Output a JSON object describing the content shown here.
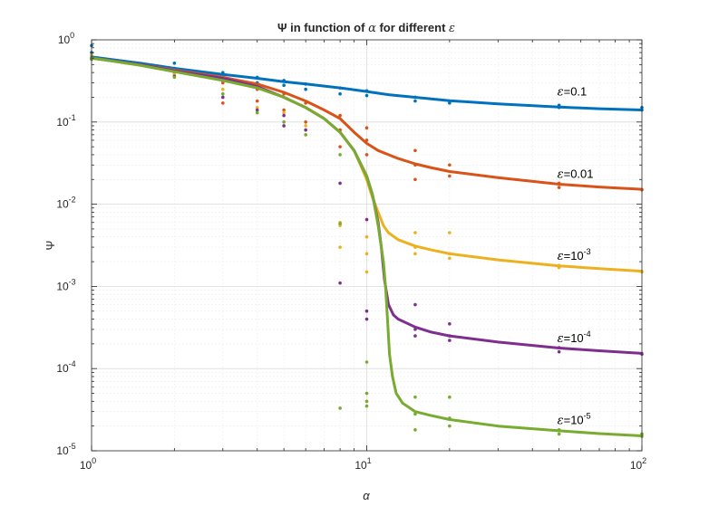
{
  "chart_data": {
    "type": "line",
    "title_prefix": "Ψ in function of ",
    "title_var": "α",
    "title_mid": " for different ",
    "title_eps": "ε",
    "xlabel": "α",
    "ylabel": "Ψ",
    "xscale": "log",
    "yscale": "log",
    "xlim": [
      1,
      100
    ],
    "ylim": [
      1e-05,
      1
    ],
    "grid": "on (major and minor)",
    "x_tick_labels": [
      {
        "value": 1,
        "base": "10",
        "exp": "0"
      },
      {
        "value": 10,
        "base": "10",
        "exp": "1"
      },
      {
        "value": 100,
        "base": "10",
        "exp": "2"
      }
    ],
    "y_tick_labels": [
      {
        "value": 1,
        "base": "10",
        "exp": "0"
      },
      {
        "value": 0.1,
        "base": "10",
        "exp": "-1"
      },
      {
        "value": 0.01,
        "base": "10",
        "exp": "-2"
      },
      {
        "value": 0.001,
        "base": "10",
        "exp": "-3"
      },
      {
        "value": 0.0001,
        "base": "10",
        "exp": "-4"
      },
      {
        "value": 1e-05,
        "base": "10",
        "exp": "-5"
      }
    ],
    "series": [
      {
        "color": "#0072bd",
        "annotation": {
          "eps": "ε",
          "text": "=0.1",
          "sup": "",
          "at": [
            50,
            0.2
          ]
        },
        "curve": {
          "x": [
            1,
            1.5,
            2,
            3,
            4,
            5,
            6,
            8,
            10,
            12,
            15,
            20,
            30,
            50,
            70,
            100
          ],
          "y": [
            0.62,
            0.52,
            0.45,
            0.38,
            0.34,
            0.31,
            0.29,
            0.26,
            0.235,
            0.215,
            0.2,
            0.182,
            0.166,
            0.152,
            0.145,
            0.14
          ]
        },
        "samples": {
          "x": [
            1,
            1,
            1,
            2,
            2,
            2,
            3,
            3,
            4,
            4,
            5,
            5,
            6,
            6,
            8,
            8,
            10,
            10,
            15,
            15,
            20,
            20,
            50,
            50,
            100,
            100
          ],
          "y": [
            0.85,
            0.7,
            0.58,
            0.52,
            0.45,
            0.4,
            0.4,
            0.35,
            0.35,
            0.3,
            0.32,
            0.28,
            0.29,
            0.25,
            0.26,
            0.22,
            0.24,
            0.21,
            0.2,
            0.18,
            0.18,
            0.17,
            0.16,
            0.15,
            0.15,
            0.14
          ]
        }
      },
      {
        "color": "#d95319",
        "annotation": {
          "eps": "ε",
          "text": "=0.01",
          "sup": "",
          "at": [
            50,
            0.02
          ]
        },
        "curve": {
          "x": [
            1,
            1.5,
            2,
            3,
            4,
            5,
            6,
            7,
            8,
            9,
            10,
            11,
            12,
            13,
            15,
            17,
            20,
            30,
            50,
            70,
            100
          ],
          "y": [
            0.6,
            0.5,
            0.43,
            0.35,
            0.29,
            0.23,
            0.18,
            0.14,
            0.11,
            0.075,
            0.055,
            0.045,
            0.04,
            0.036,
            0.031,
            0.028,
            0.025,
            0.021,
            0.0175,
            0.0162,
            0.0152
          ]
        },
        "samples": {
          "x": [
            1,
            2,
            3,
            3,
            4,
            4,
            5,
            5,
            6,
            6,
            8,
            8,
            8,
            10,
            10,
            10,
            15,
            15,
            15,
            20,
            20,
            50,
            50,
            100
          ],
          "y": [
            0.6,
            0.42,
            0.3,
            0.17,
            0.25,
            0.18,
            0.22,
            0.14,
            0.17,
            0.1,
            0.12,
            0.08,
            0.05,
            0.085,
            0.06,
            0.04,
            0.045,
            0.03,
            0.02,
            0.03,
            0.022,
            0.018,
            0.016,
            0.015
          ]
        }
      },
      {
        "color": "#edb120",
        "annotation": {
          "eps": "ε",
          "text": "=10",
          "sup": "-3",
          "at": [
            50,
            0.002
          ]
        },
        "curve": {
          "x": [
            1,
            1.5,
            2,
            3,
            4,
            5,
            6,
            7,
            8,
            9,
            10,
            10.5,
            11,
            11.5,
            12,
            13,
            15,
            17,
            20,
            30,
            50,
            70,
            100
          ],
          "y": [
            0.6,
            0.5,
            0.42,
            0.34,
            0.27,
            0.2,
            0.15,
            0.11,
            0.075,
            0.045,
            0.02,
            0.012,
            0.008,
            0.0055,
            0.0045,
            0.0037,
            0.0031,
            0.0028,
            0.0025,
            0.0021,
            0.00178,
            0.00165,
            0.00153
          ]
        },
        "samples": {
          "x": [
            1,
            2,
            3,
            4,
            4,
            5,
            5,
            6,
            6,
            8,
            8,
            8,
            10,
            10,
            10,
            15,
            15,
            15,
            20,
            20,
            20,
            50,
            50,
            100
          ],
          "y": [
            0.65,
            0.38,
            0.25,
            0.15,
            0.13,
            0.13,
            0.1,
            0.09,
            0.07,
            0.006,
            0.0055,
            0.003,
            0.004,
            0.0025,
            0.0015,
            0.0045,
            0.003,
            0.0025,
            0.0045,
            0.0025,
            0.0022,
            0.0018,
            0.0017,
            0.0015
          ]
        }
      },
      {
        "color": "#7e2f8e",
        "annotation": {
          "eps": "ε",
          "text": "=10",
          "sup": "-4",
          "at": [
            50,
            0.0002
          ]
        },
        "curve": {
          "x": [
            1,
            1.5,
            2,
            3,
            4,
            5,
            6,
            7,
            8,
            9,
            10,
            10.5,
            11,
            11.3,
            11.6,
            12,
            12.5,
            13,
            15,
            17,
            20,
            30,
            50,
            70,
            100
          ],
          "y": [
            0.6,
            0.5,
            0.42,
            0.34,
            0.27,
            0.2,
            0.15,
            0.11,
            0.075,
            0.045,
            0.022,
            0.013,
            0.006,
            0.003,
            0.0012,
            0.0006,
            0.00045,
            0.0004,
            0.00032,
            0.00028,
            0.00025,
            0.00021,
            0.000178,
            0.000165,
            0.000153
          ]
        },
        "samples": {
          "x": [
            1,
            2,
            3,
            4,
            5,
            5,
            6,
            8,
            8,
            10,
            10,
            10,
            15,
            15,
            15,
            20,
            20,
            20,
            50,
            50,
            100
          ],
          "y": [
            0.6,
            0.36,
            0.2,
            0.14,
            0.12,
            0.09,
            0.08,
            0.018,
            0.0011,
            0.0065,
            0.0005,
            0.0004,
            0.0006,
            0.0003,
            0.00025,
            0.00035,
            0.00025,
            0.00022,
            0.00018,
            0.00016,
            0.00015
          ]
        }
      },
      {
        "color": "#77ac30",
        "annotation": {
          "eps": "ε",
          "text": "=10",
          "sup": "-5",
          "at": [
            50,
            2e-05
          ]
        },
        "curve": {
          "x": [
            1,
            1.5,
            2,
            3,
            4,
            5,
            6,
            7,
            8,
            9,
            10,
            10.5,
            11,
            11.5,
            11.7,
            11.9,
            12.1,
            12.4,
            12.8,
            13.5,
            15,
            17,
            20,
            30,
            50,
            70,
            100
          ],
          "y": [
            0.6,
            0.49,
            0.41,
            0.32,
            0.26,
            0.2,
            0.15,
            0.11,
            0.075,
            0.045,
            0.022,
            0.013,
            0.0055,
            0.002,
            0.001,
            0.0004,
            0.00015,
            8e-05,
            5e-05,
            3.8e-05,
            3e-05,
            2.7e-05,
            2.4e-05,
            2e-05,
            1.75e-05,
            1.62e-05,
            1.52e-05
          ]
        },
        "samples": {
          "x": [
            1,
            2,
            3,
            4,
            5,
            6,
            8,
            8,
            8,
            10,
            10,
            10,
            10,
            15,
            15,
            15,
            20,
            20,
            20,
            50,
            50,
            100,
            100
          ],
          "y": [
            0.58,
            0.35,
            0.22,
            0.13,
            0.1,
            0.07,
            0.04,
            0.0058,
            3.3e-05,
            0.00012,
            5e-05,
            4e-05,
            3.5e-05,
            4.5e-05,
            2.8e-05,
            1.8e-05,
            4.5e-05,
            2.5e-05,
            2e-05,
            1.8e-05,
            1.6e-05,
            1.6e-05,
            1.5e-05
          ]
        }
      }
    ]
  }
}
